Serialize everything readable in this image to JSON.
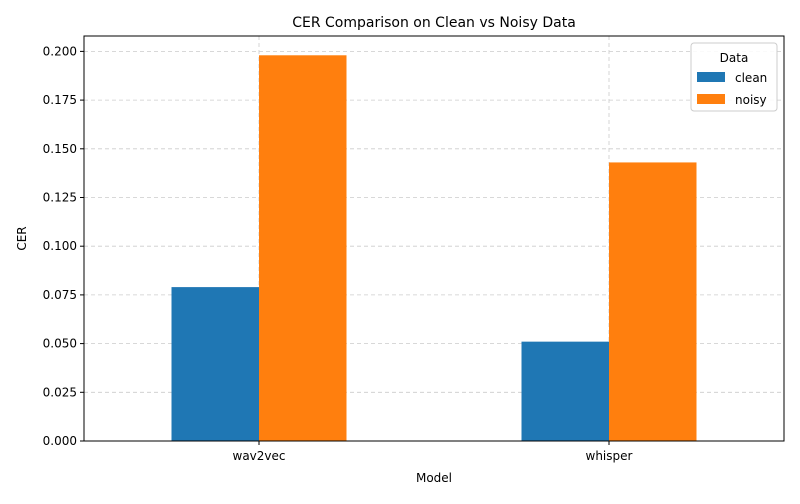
{
  "chart_data": {
    "type": "bar",
    "title": "CER Comparison on Clean vs Noisy Data",
    "xlabel": "Model",
    "ylabel": "CER",
    "categories": [
      "wav2vec",
      "whisper"
    ],
    "series": [
      {
        "name": "clean",
        "values": [
          0.079,
          0.051
        ]
      },
      {
        "name": "noisy",
        "values": [
          0.198,
          0.143
        ]
      }
    ],
    "ylim": [
      0,
      0.2079
    ],
    "yticks": [
      0.0,
      0.025,
      0.05,
      0.075,
      0.1,
      0.125,
      0.15,
      0.175,
      0.2
    ],
    "ytick_labels": [
      "0.000",
      "0.025",
      "0.050",
      "0.075",
      "0.100",
      "0.125",
      "0.150",
      "0.175",
      "0.200"
    ],
    "grid": true,
    "legend": {
      "title": "Data",
      "placement": "top-right"
    },
    "colors": {
      "clean": "#1f77b4",
      "noisy": "#ff7f0e",
      "grid": "#cccccc",
      "axis": "#000000"
    }
  }
}
